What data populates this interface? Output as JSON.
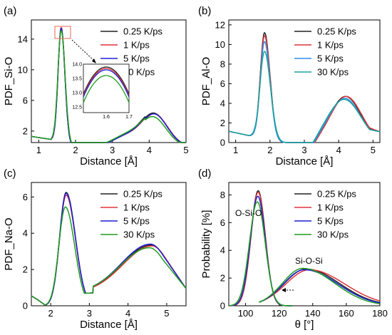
{
  "colors": {
    "0.25 K/ps": "#222222",
    "1 K/ps": "#e0343b",
    "5 K/ps": "#1f1fd6",
    "30 K/ps": "#1f9e1f",
    "Al-O 5 K/ps": "#2f8fe8",
    "Al-O 30 K/ps": "#1aa39a",
    "inset_box": "#e8806f"
  },
  "chart_data": [
    {
      "panel": "(a)",
      "type": "line",
      "ylabel": "PDF_Si-O",
      "xlabel": "Distance [Å]",
      "xlim": [
        0.8,
        5.0
      ],
      "ylim": [
        0.5,
        16.5
      ],
      "xticks": [
        "1",
        "2",
        "3",
        "4",
        "5"
      ],
      "yticks": [
        "2",
        "6",
        "10",
        "14"
      ],
      "legend": [
        "0.25 K/ps",
        "1 K/ps",
        "5 K/ps",
        "30 K/ps"
      ],
      "legend_position": "top-right",
      "series": [
        {
          "name": "0.25 K/ps",
          "peaks": [
            [
              1.61,
              15.5,
              0.085
            ],
            [
              4.12,
              4.3,
              0.36
            ],
            [
              3.35,
              1.2,
              0.35
            ]
          ]
        },
        {
          "name": "1 K/ps",
          "peaks": [
            [
              1.61,
              15.5,
              0.085
            ],
            [
              4.14,
              4.2,
              0.36
            ],
            [
              3.35,
              1.2,
              0.35
            ]
          ]
        },
        {
          "name": "5 K/ps",
          "peaks": [
            [
              1.61,
              15.4,
              0.085
            ],
            [
              4.13,
              4.2,
              0.36
            ],
            [
              3.35,
              1.2,
              0.35
            ]
          ]
        },
        {
          "name": "30 K/ps",
          "peaks": [
            [
              1.61,
              15.1,
              0.09
            ],
            [
              4.1,
              3.8,
              0.36
            ],
            [
              3.35,
              1.3,
              0.37
            ]
          ]
        }
      ],
      "inset": {
        "xlim": [
          1.5,
          1.7
        ],
        "ylim": [
          12.3,
          14.0
        ],
        "xticks": [
          "1.6",
          "1.7"
        ],
        "yticks": [
          "12.5",
          "13.0",
          "13.5",
          "14.0"
        ],
        "series": [
          {
            "name": "0.25 K/ps",
            "peak": 13.9
          },
          {
            "name": "1 K/ps",
            "peak": 13.85
          },
          {
            "name": "5 K/ps",
            "peak": 13.8
          },
          {
            "name": "30 K/ps",
            "peak": 13.6
          }
        ]
      }
    },
    {
      "panel": "(b)",
      "type": "line",
      "ylabel": "PDF_Al-O",
      "xlabel": "Distance [Å]",
      "xlim": [
        0.8,
        5.2
      ],
      "ylim": [
        0,
        12.5
      ],
      "xticks": [
        "1",
        "2",
        "3",
        "4",
        "5"
      ],
      "yticks": [
        "0",
        "2",
        "4",
        "6",
        "8",
        "10",
        "12"
      ],
      "legend": [
        "0.25 K/ps",
        "1 K/ps",
        "5 K/ps",
        "30 K/ps"
      ],
      "legend_position": "top-right",
      "series": [
        {
          "name": "0.25 K/ps",
          "peaks": [
            [
              1.84,
              11.2,
              0.12
            ],
            [
              4.2,
              4.7,
              0.45
            ],
            [
              3.4,
              0.9,
              0.3
            ]
          ]
        },
        {
          "name": "1 K/ps",
          "peaks": [
            [
              1.84,
              10.9,
              0.12
            ],
            [
              4.22,
              4.7,
              0.45
            ],
            [
              3.4,
              0.9,
              0.3
            ]
          ]
        },
        {
          "name": "5 K/ps",
          "peaks": [
            [
              1.84,
              10.3,
              0.12
            ],
            [
              4.18,
              4.5,
              0.46
            ],
            [
              3.4,
              0.9,
              0.3
            ]
          ]
        },
        {
          "name": "30 K/ps",
          "peaks": [
            [
              1.84,
              9.3,
              0.13
            ],
            [
              4.16,
              4.4,
              0.48
            ],
            [
              3.4,
              0.95,
              0.32
            ]
          ]
        }
      ]
    },
    {
      "panel": "(c)",
      "type": "line",
      "ylabel": "PDF_Na-O",
      "xlabel": "Distance [Å]",
      "xlim": [
        1.5,
        5.5
      ],
      "ylim": [
        0,
        6.8
      ],
      "xticks": [
        "2",
        "3",
        "4",
        "5"
      ],
      "yticks": [
        "0",
        "2",
        "4",
        "6"
      ],
      "legend": [
        "0.25 K/ps",
        "1 K/ps",
        "5 K/ps",
        "30 K/ps"
      ],
      "legend_position": "top-right",
      "series": [
        {
          "name": "0.25 K/ps",
          "peak1": [
            2.4,
            6.25
          ],
          "peak2": [
            4.6,
            3.35
          ]
        },
        {
          "name": "1 K/ps",
          "peak1": [
            2.4,
            6.1
          ],
          "peak2": [
            4.62,
            3.3
          ]
        },
        {
          "name": "5 K/ps",
          "peak1": [
            2.4,
            6.2
          ],
          "peak2": [
            4.58,
            3.4
          ]
        },
        {
          "name": "30 K/ps",
          "peak1": [
            2.38,
            5.45
          ],
          "peak2": [
            4.55,
            3.2
          ]
        }
      ]
    },
    {
      "panel": "(d)",
      "type": "line",
      "ylabel": "Probability [%]",
      "xlabel": "θ [°]",
      "xlim": [
        90,
        180
      ],
      "ylim": [
        0,
        8.9
      ],
      "xticks": [
        "100",
        "120",
        "140",
        "160",
        "180"
      ],
      "yticks": [
        "0",
        "2",
        "4",
        "6",
        "8"
      ],
      "legend": [
        "0.25 K/ps",
        "1 K/ps",
        "5 K/ps",
        "30 K/ps"
      ],
      "legend_position": "top-right",
      "annotations": [
        "O-Si-O",
        "Si-O-Si"
      ],
      "series": [
        {
          "name": "0.25 K/ps",
          "osio": [
            107.5,
            8.3,
            4.3
          ],
          "sios": [
            136,
            2.65,
            13,
            20
          ]
        },
        {
          "name": "1 K/ps",
          "osio": [
            107.5,
            8.2,
            4.3
          ],
          "sios": [
            138,
            2.6,
            14,
            21
          ]
        },
        {
          "name": "5 K/ps",
          "osio": [
            107.3,
            7.9,
            4.45
          ],
          "sios": [
            135,
            2.6,
            12.5,
            20
          ]
        },
        {
          "name": "30 K/ps",
          "osio": [
            107.0,
            7.5,
            4.7
          ],
          "sios": [
            134,
            2.7,
            12,
            19
          ]
        }
      ]
    }
  ]
}
